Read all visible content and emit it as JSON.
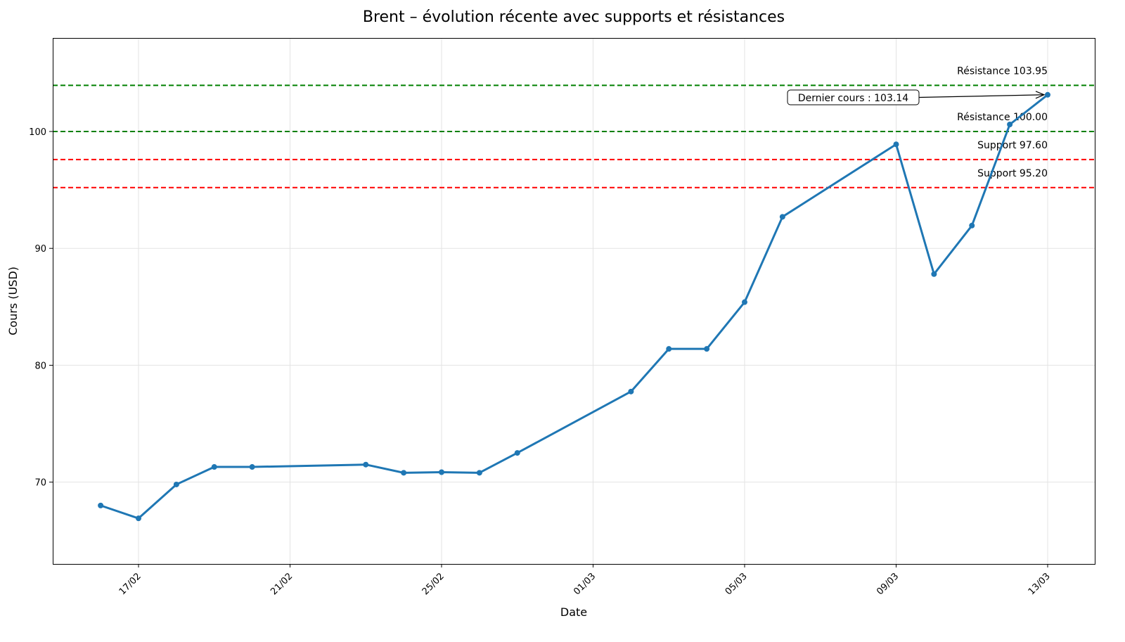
{
  "chart_data": {
    "type": "line",
    "title": "Brent – évolution récente avec supports et résistances",
    "xlabel": "Date",
    "ylabel": "Cours (USD)",
    "ylim": [
      63,
      108
    ],
    "yticks": [
      70,
      80,
      90,
      100
    ],
    "xticks": [
      "17/02",
      "21/02",
      "25/02",
      "01/03",
      "05/03",
      "09/03",
      "13/03"
    ],
    "grid": true,
    "series": [
      {
        "color": "#1f77b4",
        "x": [
          "16/02",
          "17/02",
          "18/02",
          "19/02",
          "20/02",
          "23/02",
          "24/02",
          "25/02",
          "26/02",
          "27/02",
          "02/03",
          "03/03",
          "04/03",
          "05/03",
          "06/03",
          "09/03",
          "10/03",
          "11/03",
          "12/03",
          "13/03"
        ],
        "y": [
          68.0,
          66.9,
          69.8,
          71.3,
          71.3,
          71.5,
          70.8,
          70.85,
          70.8,
          72.5,
          77.75,
          81.4,
          81.4,
          85.4,
          92.7,
          98.9,
          87.8,
          91.95,
          100.6,
          103.14
        ]
      }
    ],
    "levels": [
      {
        "label": "Résistance 103.95",
        "value": 103.95,
        "color": "#008000"
      },
      {
        "label": "Résistance 100.00",
        "value": 100.0,
        "color": "#008000"
      },
      {
        "label": "Support 97.60",
        "value": 97.6,
        "color": "#ff0000"
      },
      {
        "label": "Support 95.20",
        "value": 95.2,
        "color": "#ff0000"
      }
    ],
    "annotation": {
      "text": "Dernier cours : 103.14",
      "x": "13/03",
      "y": 103.14
    }
  }
}
